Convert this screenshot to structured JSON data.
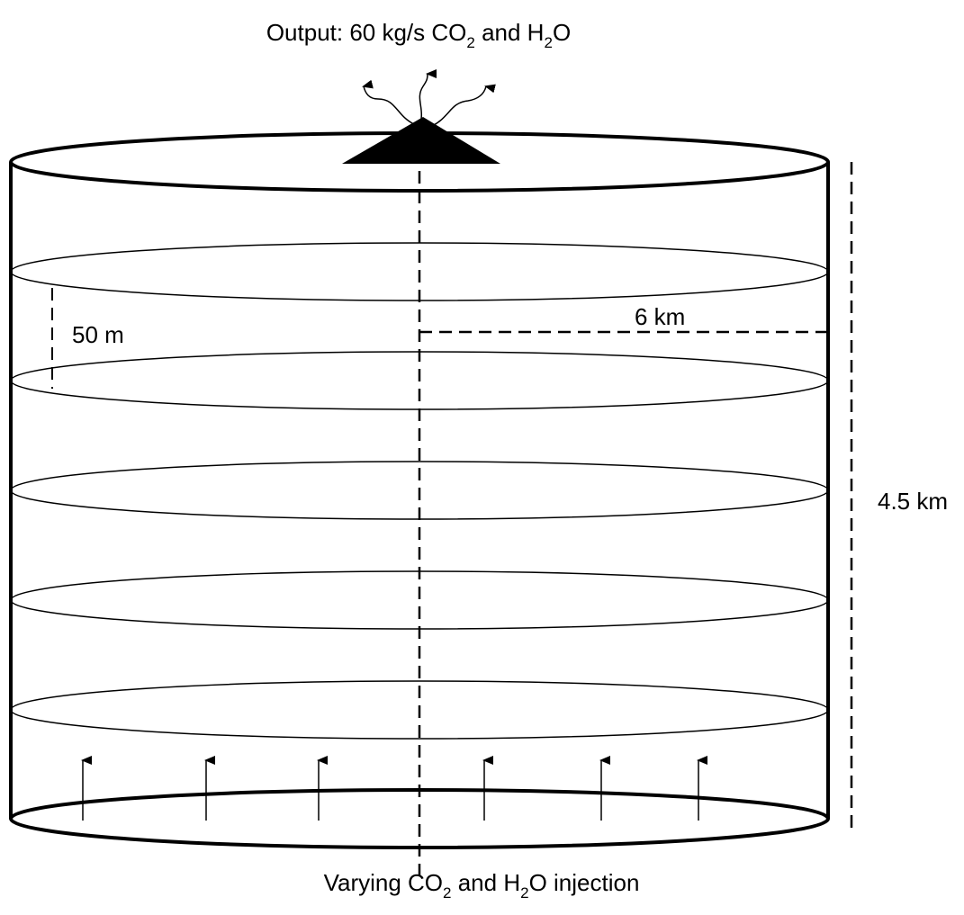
{
  "output_label": {
    "parts": [
      "Output: 60 kg/s CO",
      "2",
      " and H",
      "2",
      "O"
    ]
  },
  "injection_label": {
    "parts": [
      "Varying CO",
      "2",
      " and H",
      "2",
      "O injection"
    ]
  },
  "layer_thickness_label": "50 m",
  "radius_label": "6 km",
  "height_label": "4.5 km"
}
